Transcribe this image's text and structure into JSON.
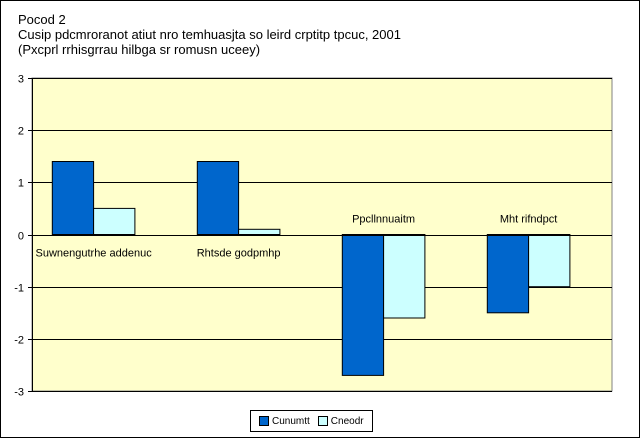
{
  "chart_data": {
    "type": "bar",
    "title_lines": [
      "Pocod 2",
      "Cusip pdcmroranot atiut nro temhuasjta so leird crptitp tpcuc, 2001",
      "(Pxcprl rrhisgrrau hilbga sr romusn uceey)"
    ],
    "categories": [
      "Suwnengutrhe addenuc",
      "Rhtsde godpmhp",
      "Ppcllnnuaitm",
      "Mht rifndpct"
    ],
    "series": [
      {
        "name": "Cunumtt",
        "color": "#0066CC",
        "values": [
          1.4,
          1.4,
          -2.7,
          -1.5
        ]
      },
      {
        "name": "Cneodr",
        "color": "#CCFFFF",
        "values": [
          0.5,
          0.1,
          -1.6,
          -1.0
        ]
      }
    ],
    "ylim": [
      -3,
      3
    ],
    "yticks": [
      "3",
      "2",
      "1",
      "0",
      "-1",
      "-2",
      "-3"
    ],
    "ytick_values": [
      3,
      2,
      1,
      0,
      -1,
      -2,
      -3
    ],
    "plot_background": "#FFFFCC",
    "grid": true,
    "legend_position": "bottom"
  }
}
